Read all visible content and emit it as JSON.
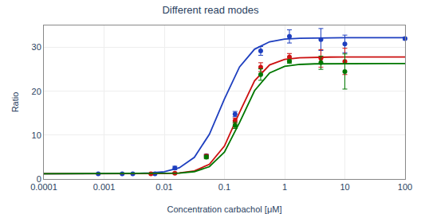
{
  "chart_data": {
    "type": "scatter",
    "title": "Different read modes",
    "xlabel": "Concentration carbachol [μM]",
    "ylabel": "Ratio",
    "log": "x",
    "grid": true,
    "xlim": [
      0.0001,
      100
    ],
    "xticks": [
      0.0001,
      0.001,
      0.01,
      0.1,
      1,
      10,
      100
    ],
    "ylim": [
      0,
      35
    ],
    "yticks": [
      0,
      10,
      20,
      30
    ],
    "series": [
      {
        "type": "line",
        "color": "#1e3fbf",
        "x": [
          0.0001,
          0.000177828,
          0.000316228,
          0.000562341,
          0.001,
          0.00177828,
          0.00316228,
          0.00562341,
          0.01,
          0.0177828,
          0.0316228,
          0.0562341,
          0.1,
          0.177828,
          0.316228,
          0.562341,
          1,
          1.77828,
          3.16228,
          5.62341,
          10,
          17.7828,
          31.6228,
          56.2341,
          100
        ],
        "values": [
          1.2,
          1.2,
          1.201,
          1.202,
          1.206,
          1.218,
          1.253,
          1.359,
          1.67,
          2.561,
          4.937,
          10.202,
          18.246,
          25.529,
          29.592,
          31.275,
          31.884,
          32.093,
          32.164,
          32.188,
          32.196,
          32.199,
          32.2,
          32.2,
          32.2
        ]
      },
      {
        "type": "scatter",
        "marker": "circle",
        "color": "#1e3fbf",
        "x": [
          0.0008,
          0.002,
          0.003,
          0.007,
          0.015,
          0.05,
          0.15,
          0.4,
          1.2,
          4.0,
          10.0,
          100.0
        ],
        "values": [
          1.2,
          1.2,
          1.2,
          1.2,
          2.5,
          5.3,
          14.8,
          29.2,
          32.5,
          31.8,
          30.8,
          32.0
        ],
        "errors": [
          0.05,
          0.05,
          0.05,
          0.05,
          0.4,
          0.3,
          0.6,
          1.0,
          1.5,
          2.5,
          2.0,
          0.3
        ]
      },
      {
        "type": "line",
        "color": "#cc1111",
        "x": [
          0.0001,
          0.000177828,
          0.000316228,
          0.000562341,
          0.001,
          0.00177828,
          0.00316228,
          0.00562341,
          0.01,
          0.0177828,
          0.0316228,
          0.0562341,
          0.1,
          0.177828,
          0.316228,
          0.562341,
          1,
          1.77828,
          3.16228,
          5.62341,
          10,
          17.7828,
          31.6228,
          56.2341,
          100
        ],
        "values": [
          1.2,
          1.2,
          1.2,
          1.2,
          1.2,
          1.201,
          1.204,
          1.215,
          1.252,
          1.384,
          1.842,
          3.345,
          7.513,
          15.158,
          22.391,
          26.015,
          27.271,
          27.649,
          27.757,
          27.788,
          27.797,
          27.799,
          27.8,
          27.8,
          27.8
        ]
      },
      {
        "type": "scatter",
        "marker": "circle",
        "color": "#cc1111",
        "x": [
          0.006,
          0.015,
          0.05,
          0.15,
          0.4,
          1.2,
          4.0,
          10.0
        ],
        "values": [
          1.2,
          1.3,
          5.2,
          13.3,
          25.5,
          27.8,
          27.5,
          26.8
        ],
        "errors": [
          0.05,
          0.15,
          0.4,
          0.6,
          1.0,
          0.8,
          2.0,
          3.0
        ]
      },
      {
        "type": "line",
        "color": "#007700",
        "x": [
          0.0001,
          0.000177828,
          0.000316228,
          0.000562341,
          0.001,
          0.00177828,
          0.00316228,
          0.00562341,
          0.01,
          0.0177828,
          0.0316228,
          0.0562341,
          0.1,
          0.177828,
          0.316228,
          0.562341,
          1,
          1.77828,
          3.16228,
          5.62341,
          10,
          17.7828,
          31.6228,
          56.2341,
          100
        ],
        "values": [
          1.2,
          1.2,
          1.2,
          1.2,
          1.2,
          1.201,
          1.203,
          1.211,
          1.239,
          1.336,
          1.677,
          2.813,
          6.117,
          12.837,
          20.129,
          24.188,
          25.666,
          26.118,
          26.248,
          26.285,
          26.296,
          26.299,
          26.3,
          26.3,
          26.3
        ]
      },
      {
        "type": "scatter",
        "marker": "circle",
        "color": "#007700",
        "x": [
          0.05,
          0.15,
          0.4,
          1.2,
          4.0,
          10.0
        ],
        "values": [
          5.0,
          12.2,
          23.8,
          26.8,
          26.5,
          24.5
        ],
        "errors": [
          0.4,
          0.7,
          1.3,
          0.4,
          1.5,
          4.0
        ]
      }
    ]
  }
}
